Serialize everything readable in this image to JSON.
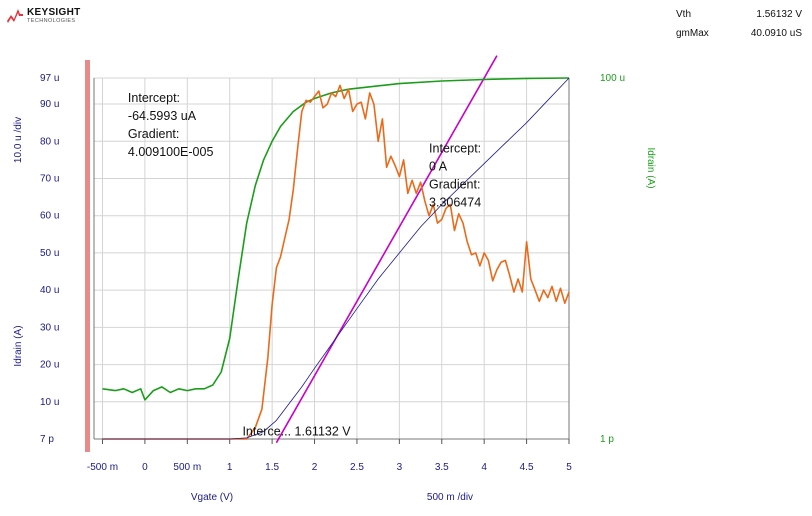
{
  "header": {
    "logo_text": "KEYSIGHT",
    "logo_subtext": "TECHNOLOGIES",
    "logo_color": "#e6313a"
  },
  "readouts": [
    {
      "name": "Vth",
      "value": "1.56132 V"
    },
    {
      "name": "gmMax",
      "value": "40.0910 uS"
    }
  ],
  "chart_data": {
    "type": "line",
    "xlabel": "Vgate (V)",
    "x_scale_label": "500 m /div",
    "xlim": [
      -0.6,
      5.0
    ],
    "x_ticks": [
      {
        "v": -0.5,
        "label": "-500 m"
      },
      {
        "v": 0,
        "label": "0"
      },
      {
        "v": 0.5,
        "label": "500 m"
      },
      {
        "v": 1,
        "label": "1"
      },
      {
        "v": 1.5,
        "label": "1.5"
      },
      {
        "v": 2,
        "label": "2"
      },
      {
        "v": 2.5,
        "label": "2.5"
      },
      {
        "v": 3,
        "label": "3"
      },
      {
        "v": 3.5,
        "label": "3.5"
      },
      {
        "v": 4,
        "label": "4"
      },
      {
        "v": 4.5,
        "label": "4.5"
      },
      {
        "v": 5,
        "label": "5"
      }
    ],
    "left_axis": {
      "label": "Idrain (A)",
      "scale_label": "10.0 u /div",
      "color": "#1a1a8c",
      "ylim": [
        0,
        97
      ],
      "ticks": [
        {
          "v": 0,
          "label": "7 p"
        },
        {
          "v": 10,
          "label": "10 u"
        },
        {
          "v": 20,
          "label": "20 u"
        },
        {
          "v": 30,
          "label": "30 u"
        },
        {
          "v": 40,
          "label": "40 u"
        },
        {
          "v": 50,
          "label": "50 u"
        },
        {
          "v": 60,
          "label": "60 u"
        },
        {
          "v": 70,
          "label": "70 u"
        },
        {
          "v": 80,
          "label": "80 u"
        },
        {
          "v": 90,
          "label": "90 u"
        },
        {
          "v": 97,
          "label": "97 u"
        }
      ]
    },
    "right_axis": {
      "label": "Idrain (A)",
      "color": "#1a9e1a",
      "log_scale": true,
      "ticks": [
        {
          "label": "1 p"
        },
        {
          "label": "100 u"
        }
      ]
    },
    "grid": true,
    "series": [
      {
        "color": "#1a1a8c",
        "axis": "left",
        "x": [
          -0.5,
          0.5,
          1.0,
          1.2,
          1.4,
          1.55,
          1.7,
          1.85,
          2.0,
          2.25,
          2.5,
          2.75,
          3.0,
          3.25,
          3.5,
          3.75,
          4.0,
          4.25,
          4.5,
          4.75,
          5.0
        ],
        "y": [
          0,
          0,
          0,
          0.3,
          2.0,
          5.0,
          9.5,
          14.0,
          19.0,
          27.0,
          35.0,
          43.0,
          50.0,
          57.0,
          63.0,
          68.5,
          74.0,
          79.5,
          85.0,
          91.0,
          97.0
        ]
      },
      {
        "color": "#1a9e1a",
        "axis": "right",
        "x": [
          -0.5,
          -0.35,
          -0.25,
          -0.15,
          -0.05,
          0,
          0.1,
          0.2,
          0.3,
          0.4,
          0.5,
          0.6,
          0.7,
          0.8,
          0.9,
          1.0,
          1.1,
          1.2,
          1.3,
          1.4,
          1.5,
          1.6,
          1.75,
          1.9,
          2.0,
          2.2,
          2.4,
          2.6,
          2.8,
          3.0,
          3.5,
          4.0,
          4.5,
          5.0
        ],
        "y": [
          13.5,
          13.0,
          13.5,
          12.5,
          13.5,
          10.5,
          13.0,
          14.0,
          12.5,
          13.5,
          13.0,
          13.5,
          13.5,
          14.5,
          18.0,
          27.0,
          43.0,
          58.0,
          68.0,
          75.0,
          80.0,
          84.0,
          88.0,
          90.5,
          91.5,
          93.0,
          94.0,
          94.5,
          95.0,
          95.5,
          96.2,
          96.6,
          96.9,
          97.0
        ]
      },
      {
        "color": "#ea6a1a",
        "axis": "left",
        "x": [
          -0.5,
          1.2,
          1.3,
          1.38,
          1.45,
          1.5,
          1.55,
          1.6,
          1.65,
          1.7,
          1.75,
          1.8,
          1.85,
          1.9,
          1.95,
          2.0,
          2.05,
          2.1,
          2.15,
          2.2,
          2.25,
          2.3,
          2.35,
          2.4,
          2.45,
          2.5,
          2.55,
          2.6,
          2.65,
          2.7,
          2.75,
          2.8,
          2.85,
          2.9,
          2.95,
          3.0,
          3.05,
          3.1,
          3.15,
          3.2,
          3.25,
          3.3,
          3.35,
          3.4,
          3.45,
          3.5,
          3.55,
          3.6,
          3.65,
          3.7,
          3.75,
          3.8,
          3.85,
          3.9,
          3.95,
          4.0,
          4.05,
          4.1,
          4.15,
          4.2,
          4.25,
          4.3,
          4.35,
          4.4,
          4.45,
          4.5,
          4.55,
          4.6,
          4.65,
          4.7,
          4.75,
          4.8,
          4.85,
          4.9,
          4.95,
          5.0
        ],
        "y": [
          0,
          0,
          3.0,
          8.0,
          22.0,
          36.0,
          46.0,
          49.0,
          54.0,
          59.0,
          67.0,
          78.0,
          88.0,
          91.0,
          90.5,
          92.0,
          93.5,
          89.0,
          90.0,
          93.0,
          92.0,
          95.0,
          91.5,
          94.0,
          88.0,
          90.0,
          90.5,
          86.0,
          93.0,
          90.0,
          80.0,
          86.0,
          73.0,
          76.0,
          73.5,
          70.5,
          75.0,
          66.0,
          69.5,
          66.0,
          69.0,
          64.0,
          60.0,
          63.0,
          58.0,
          59.0,
          62.0,
          63.0,
          56.0,
          60.5,
          58.0,
          53.0,
          49.5,
          50.0,
          46.5,
          50.0,
          48.0,
          42.5,
          45.5,
          47.5,
          48.0,
          44.0,
          39.5,
          43.0,
          39.5,
          53.0,
          43.0,
          40.0,
          37.0,
          40.0,
          38.0,
          41.0,
          37.0,
          40.5,
          36.5,
          39.5
        ]
      },
      {
        "color": "#c800c8",
        "axis": "left",
        "x": [
          1.55,
          4.15
        ],
        "y": [
          -1.0,
          103.0
        ]
      }
    ],
    "annotations": [
      {
        "lines": [
          "Intercept:",
          "-64.5993 uA",
          "Gradient:",
          "4.009100E-005"
        ],
        "x": -0.2,
        "y": 90.5
      },
      {
        "lines": [
          "Intercept:",
          "0 A",
          "Gradient:",
          "3.306474"
        ],
        "x": 3.35,
        "y": 77.0
      },
      {
        "lines": [
          "Interce...   1.61132 V"
        ],
        "x": 1.15,
        "y": 1.0
      }
    ]
  }
}
